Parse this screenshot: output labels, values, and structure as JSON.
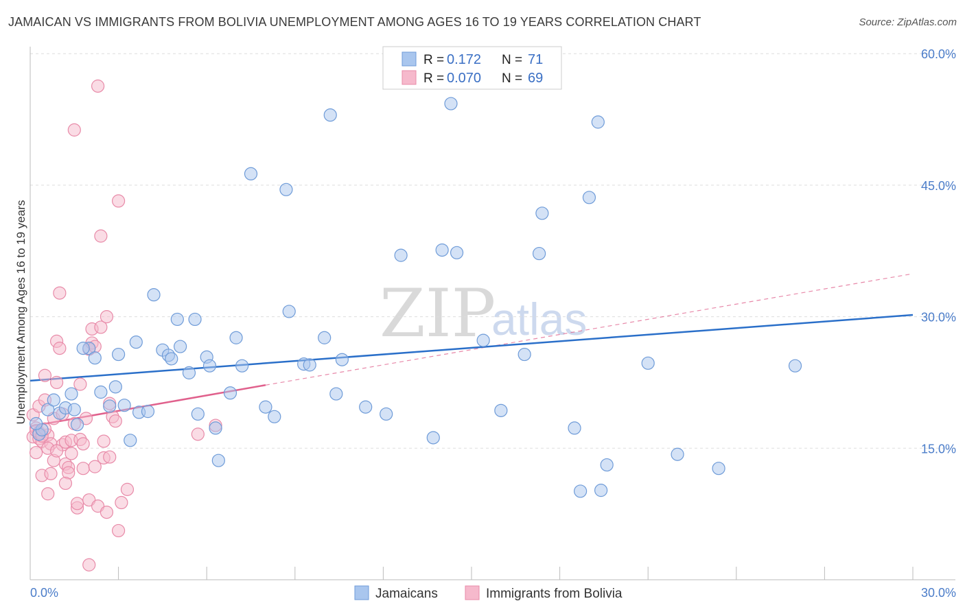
{
  "title": "JAMAICAN VS IMMIGRANTS FROM BOLIVIA UNEMPLOYMENT AMONG AGES 16 TO 19 YEARS CORRELATION CHART",
  "source": "Source: ZipAtlas.com",
  "watermark": {
    "zip": "ZIP",
    "atlas": "atlas"
  },
  "colors": {
    "blue_fill": "#a9c6ee",
    "blue_stroke": "#6e9bd8",
    "blue_line": "#2a6fc9",
    "pink_fill": "#f6b9cc",
    "pink_stroke": "#e88aa8",
    "pink_line": "#e0608c",
    "tick_text": "#4a7cc9",
    "grid": "#dddddd"
  },
  "legend": {
    "rows": [
      {
        "r_label": "R =",
        "r_value": "0.172",
        "n_label": "N =",
        "n_value": "71"
      },
      {
        "r_label": "R =",
        "r_value": "0.070",
        "n_label": "N =",
        "n_value": "69"
      }
    ]
  },
  "chart_data": {
    "type": "scatter",
    "title": "JAMAICAN VS IMMIGRANTS FROM BOLIVIA UNEMPLOYMENT AMONG AGES 16 TO 19 YEARS CORRELATION CHART",
    "xlabel": "",
    "ylabel": "Unemployment Among Ages 16 to 19 years",
    "xlim": [
      0,
      30
    ],
    "ylim": [
      0,
      60
    ],
    "x_tick_labels": [
      {
        "value": 0,
        "label": "0.0%"
      },
      {
        "value": 30,
        "label": "30.0%"
      }
    ],
    "y_tick_labels": [
      {
        "value": 15,
        "label": "15.0%"
      },
      {
        "value": 30,
        "label": "30.0%"
      },
      {
        "value": 45,
        "label": "45.0%"
      },
      {
        "value": 60,
        "label": "60.0%"
      }
    ],
    "grid": true,
    "legend_position": "top-center",
    "series": [
      {
        "name": "Jamaicans",
        "color": "blue",
        "r": 0.172,
        "n": 71,
        "trend": {
          "x0": 0,
          "y0": 22.7,
          "x1": 30,
          "y1": 30.2
        },
        "points": [
          [
            0.3,
            16.6
          ],
          [
            0.4,
            17.1
          ],
          [
            0.6,
            19.4
          ],
          [
            0.8,
            20.5
          ],
          [
            1.0,
            19.0
          ],
          [
            1.2,
            19.6
          ],
          [
            1.4,
            21.2
          ],
          [
            1.5,
            19.4
          ],
          [
            1.6,
            17.7
          ],
          [
            2.0,
            26.4
          ],
          [
            2.2,
            25.3
          ],
          [
            2.4,
            21.4
          ],
          [
            2.7,
            19.8
          ],
          [
            2.9,
            22.0
          ],
          [
            3.0,
            25.7
          ],
          [
            3.2,
            19.9
          ],
          [
            3.4,
            15.9
          ],
          [
            3.6,
            27.1
          ],
          [
            3.7,
            19.1
          ],
          [
            4.0,
            19.2
          ],
          [
            4.2,
            32.5
          ],
          [
            4.5,
            26.2
          ],
          [
            4.7,
            25.6
          ],
          [
            4.8,
            25.2
          ],
          [
            5.0,
            29.7
          ],
          [
            5.1,
            26.6
          ],
          [
            5.4,
            23.6
          ],
          [
            5.6,
            29.7
          ],
          [
            5.7,
            18.9
          ],
          [
            6.0,
            25.4
          ],
          [
            6.1,
            24.4
          ],
          [
            6.3,
            17.3
          ],
          [
            6.4,
            13.6
          ],
          [
            6.8,
            21.3
          ],
          [
            7.0,
            27.6
          ],
          [
            7.2,
            24.4
          ],
          [
            7.5,
            46.3
          ],
          [
            8.0,
            19.7
          ],
          [
            8.3,
            18.6
          ],
          [
            8.7,
            44.5
          ],
          [
            8.8,
            30.6
          ],
          [
            9.3,
            24.6
          ],
          [
            9.5,
            24.5
          ],
          [
            10.0,
            27.6
          ],
          [
            10.2,
            53.0
          ],
          [
            10.4,
            21.2
          ],
          [
            10.6,
            25.1
          ],
          [
            11.4,
            19.7
          ],
          [
            12.1,
            18.9
          ],
          [
            12.6,
            37.0
          ],
          [
            13.7,
            16.2
          ],
          [
            14.0,
            37.6
          ],
          [
            14.3,
            54.3
          ],
          [
            14.5,
            37.3
          ],
          [
            15.4,
            27.3
          ],
          [
            16.0,
            19.3
          ],
          [
            16.8,
            25.7
          ],
          [
            17.3,
            37.2
          ],
          [
            17.4,
            41.8
          ],
          [
            18.5,
            17.3
          ],
          [
            18.7,
            10.1
          ],
          [
            19.0,
            43.6
          ],
          [
            19.3,
            52.2
          ],
          [
            19.4,
            10.2
          ],
          [
            19.6,
            13.1
          ],
          [
            21.0,
            24.7
          ],
          [
            22.0,
            14.3
          ],
          [
            23.4,
            12.7
          ],
          [
            26.0,
            24.4
          ],
          [
            0.2,
            17.8
          ],
          [
            1.8,
            26.4
          ]
        ]
      },
      {
        "name": "Immigrants from Bolivia",
        "color": "pink",
        "r": 0.07,
        "n": 69,
        "trend": {
          "x0": 0,
          "y0": 17.5,
          "x1": 8,
          "y1": 22.2
        },
        "trend_dashed_extension": {
          "x0": 8,
          "y0": 22.2,
          "x1": 30,
          "y1": 34.9
        },
        "points": [
          [
            0.1,
            18.8
          ],
          [
            0.1,
            16.3
          ],
          [
            0.2,
            14.5
          ],
          [
            0.2,
            17.3
          ],
          [
            0.3,
            16.1
          ],
          [
            0.3,
            19.8
          ],
          [
            0.4,
            15.8
          ],
          [
            0.4,
            11.9
          ],
          [
            0.5,
            23.3
          ],
          [
            0.5,
            20.5
          ],
          [
            0.6,
            16.5
          ],
          [
            0.6,
            9.8
          ],
          [
            0.7,
            12.1
          ],
          [
            0.7,
            15.5
          ],
          [
            0.8,
            13.6
          ],
          [
            0.8,
            18.4
          ],
          [
            0.9,
            27.2
          ],
          [
            0.9,
            22.5
          ],
          [
            1.0,
            26.4
          ],
          [
            1.0,
            32.7
          ],
          [
            1.1,
            15.4
          ],
          [
            1.1,
            18.9
          ],
          [
            1.2,
            13.2
          ],
          [
            1.2,
            15.7
          ],
          [
            1.3,
            12.8
          ],
          [
            1.3,
            12.2
          ],
          [
            1.4,
            15.9
          ],
          [
            1.4,
            14.4
          ],
          [
            1.5,
            17.8
          ],
          [
            1.5,
            51.3
          ],
          [
            1.6,
            8.2
          ],
          [
            1.6,
            8.7
          ],
          [
            1.7,
            22.3
          ],
          [
            1.7,
            16.0
          ],
          [
            1.8,
            15.5
          ],
          [
            1.8,
            12.7
          ],
          [
            1.9,
            18.4
          ],
          [
            2.0,
            1.7
          ],
          [
            2.0,
            9.1
          ],
          [
            2.0,
            26.3
          ],
          [
            2.1,
            28.6
          ],
          [
            2.1,
            27.0
          ],
          [
            2.2,
            12.9
          ],
          [
            2.2,
            26.6
          ],
          [
            2.3,
            56.3
          ],
          [
            2.3,
            8.4
          ],
          [
            2.4,
            28.8
          ],
          [
            2.4,
            39.2
          ],
          [
            2.5,
            15.8
          ],
          [
            2.5,
            13.9
          ],
          [
            2.6,
            30.0
          ],
          [
            2.6,
            7.7
          ],
          [
            2.7,
            14.0
          ],
          [
            2.7,
            20.1
          ],
          [
            2.8,
            18.6
          ],
          [
            2.9,
            18.1
          ],
          [
            3.0,
            43.2
          ],
          [
            3.0,
            5.6
          ],
          [
            3.1,
            8.8
          ],
          [
            3.3,
            10.3
          ],
          [
            5.7,
            16.6
          ],
          [
            6.3,
            17.6
          ],
          [
            0.2,
            17.0
          ],
          [
            0.3,
            16.8
          ],
          [
            0.4,
            16.4
          ],
          [
            0.5,
            17.2
          ],
          [
            0.6,
            15.0
          ],
          [
            0.9,
            14.7
          ],
          [
            1.2,
            11.0
          ]
        ]
      }
    ]
  },
  "bottom_legend": [
    {
      "label": "Jamaicans",
      "color": "blue"
    },
    {
      "label": "Immigrants from Bolivia",
      "color": "pink"
    }
  ]
}
